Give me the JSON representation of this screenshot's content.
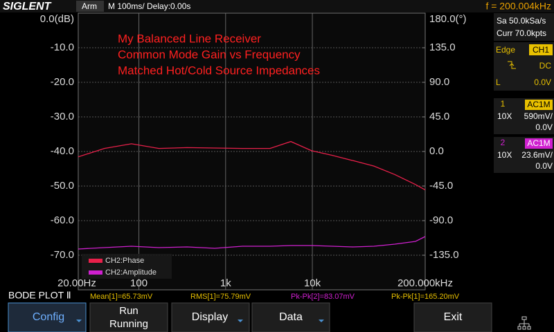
{
  "header": {
    "brand": "SIGLENT",
    "status": "Arm",
    "timebase": "M 100ms/  Delay:0.00s",
    "frequency": "f = 200.004kHz"
  },
  "side_panel": {
    "sample_rate": "Sa 50.0kSa/s",
    "memory": "Curr 70.0kpts",
    "trigger_type": "Edge",
    "trigger_source": "CH1",
    "trigger_coupling": "DC",
    "trigger_level_label": "L",
    "trigger_level": "0.0V",
    "ch1": {
      "number": "1",
      "coupling": "AC1M",
      "probe": "10X",
      "scale": "590mV/",
      "offset": "0.0V"
    },
    "ch2": {
      "number": "2",
      "coupling": "AC1M",
      "probe": "10X",
      "scale": "23.6mV/",
      "offset": "0.0V"
    }
  },
  "status_bar": {
    "mode": "BODE PLOT Ⅱ",
    "mean": "Mean[1]=65.73mV",
    "rms": "RMS[1]=75.79mV",
    "pkpk2": "Pk-Pk[2]=83.07mV",
    "pkpk1": "Pk-Pk[1]=165.20mV"
  },
  "menu": {
    "config": "Config",
    "run": "Run",
    "run_state": "Running",
    "display": "Display",
    "data": "Data",
    "exit": "Exit"
  },
  "chart_data": {
    "type": "line",
    "annotations": [
      "My Balanced Line Receiver",
      "Common Mode Gain vs Frequency",
      "Matched Hot/Cold Source Impedances"
    ],
    "log_x": true,
    "grid": true,
    "x": [
      20,
      40,
      82,
      170,
      360,
      750,
      1560,
      3250,
      5650,
      9800,
      17000,
      29600,
      51300,
      89100,
      154600,
      200000
    ],
    "xlim": [
      20,
      200000
    ],
    "xticks": [
      {
        "value": 20,
        "label": "20.00Hz"
      },
      {
        "value": 100,
        "label": "100"
      },
      {
        "value": 1000,
        "label": "1k"
      },
      {
        "value": 10000,
        "label": "10k"
      },
      {
        "value": 200000,
        "label": "200.000kHz"
      }
    ],
    "ylim": [
      -80,
      0
    ],
    "yticks": [
      {
        "value": 0,
        "label": "0.0(dB)"
      },
      {
        "value": -10,
        "label": "-10.0"
      },
      {
        "value": -20,
        "label": "-20.0"
      },
      {
        "value": -30,
        "label": "-30.0"
      },
      {
        "value": -40,
        "label": "-40.0"
      },
      {
        "value": -50,
        "label": "-50.0"
      },
      {
        "value": -60,
        "label": "-60.0"
      },
      {
        "value": -70,
        "label": "-70.0"
      }
    ],
    "y2lim": [
      -180,
      180
    ],
    "y2ticks": [
      {
        "value": 180,
        "label": "180.0(°)"
      },
      {
        "value": 135,
        "label": "135.0"
      },
      {
        "value": 90,
        "label": "90.0"
      },
      {
        "value": 45,
        "label": "45.0"
      },
      {
        "value": 0,
        "label": "0.0"
      },
      {
        "value": -45,
        "label": "-45.0"
      },
      {
        "value": -90,
        "label": "-90.0"
      },
      {
        "value": -135,
        "label": "-135.0"
      }
    ],
    "series": [
      {
        "name": "CH2:Phase",
        "color": "#e8204a",
        "axis": "y2",
        "values": [
          -7,
          4,
          10,
          4,
          5,
          4.5,
          4,
          4,
          13,
          1,
          -5,
          -12,
          -19,
          -30,
          -43,
          -50
        ]
      },
      {
        "name": "CH2:Amplitude",
        "color": "#d020d0",
        "values": [
          -68.2,
          -67.8,
          -67.4,
          -67.8,
          -67.6,
          -68,
          -67.4,
          -67.4,
          -67.2,
          -67.2,
          -67.4,
          -67.6,
          -67.4,
          -66.8,
          -66,
          -64.6
        ]
      }
    ]
  }
}
